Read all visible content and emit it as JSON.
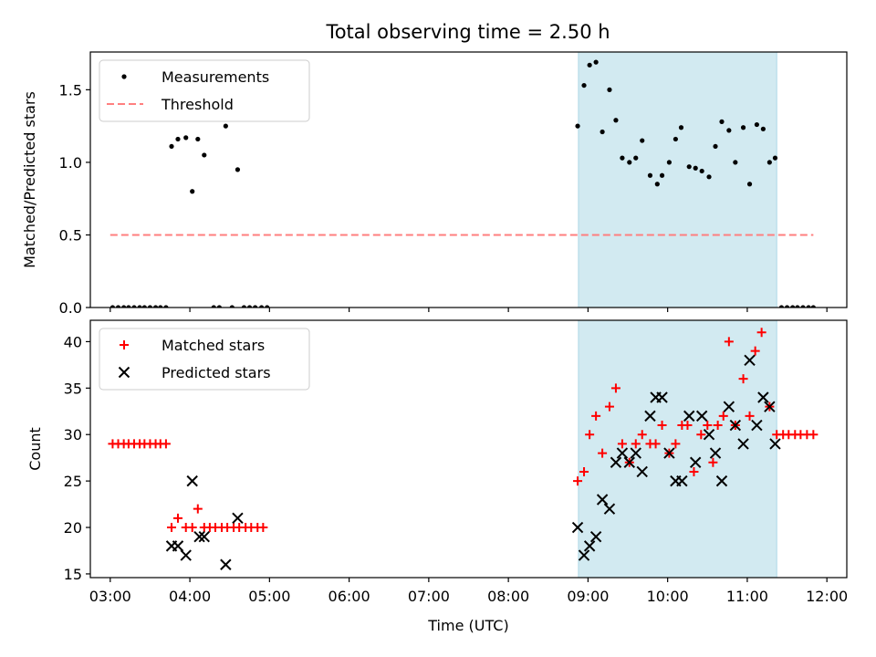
{
  "title": "Total observing time = 2.50 h",
  "colors": {
    "measurement": "#000000",
    "threshold": "#ff7f7f",
    "matched": "#ff0000",
    "predicted": "#000000",
    "shade": "#add8e6"
  },
  "chart_data": [
    {
      "type": "scatter",
      "ylabel": "Matched/Predicted stars",
      "xlim": [
        2.75,
        12.25
      ],
      "ylim": [
        0,
        1.76
      ],
      "yticks": [
        "0.0",
        "0.5",
        "1.0",
        "1.5"
      ],
      "ytick_values": [
        0,
        0.5,
        1.0,
        1.5
      ],
      "legend": {
        "position": "upper left",
        "entries": [
          "Measurements",
          "Threshold"
        ]
      },
      "shaded_interval": [
        8.88,
        11.37
      ],
      "threshold": {
        "value": 0.5,
        "x": [
          3.0,
          11.83
        ],
        "style": "dashed"
      },
      "series": [
        {
          "name": "Measurements",
          "marker": "dot",
          "points": [
            [
              3.03,
              0
            ],
            [
              3.1,
              0
            ],
            [
              3.17,
              0
            ],
            [
              3.23,
              0
            ],
            [
              3.3,
              0
            ],
            [
              3.37,
              0
            ],
            [
              3.43,
              0
            ],
            [
              3.5,
              0
            ],
            [
              3.57,
              0
            ],
            [
              3.63,
              0
            ],
            [
              3.7,
              0
            ],
            [
              3.77,
              1.11
            ],
            [
              3.85,
              1.16
            ],
            [
              3.95,
              1.17
            ],
            [
              4.03,
              0.8
            ],
            [
              4.1,
              1.16
            ],
            [
              4.18,
              1.05
            ],
            [
              4.3,
              0
            ],
            [
              4.37,
              0
            ],
            [
              4.45,
              1.25
            ],
            [
              4.53,
              0
            ],
            [
              4.6,
              0.95
            ],
            [
              4.68,
              0
            ],
            [
              4.75,
              0
            ],
            [
              4.82,
              0
            ],
            [
              4.9,
              0
            ],
            [
              4.97,
              0
            ],
            [
              8.87,
              1.25
            ],
            [
              8.95,
              1.53
            ],
            [
              9.02,
              1.67
            ],
            [
              9.1,
              1.69
            ],
            [
              9.18,
              1.21
            ],
            [
              9.27,
              1.5
            ],
            [
              9.35,
              1.29
            ],
            [
              9.43,
              1.03
            ],
            [
              9.52,
              1.0
            ],
            [
              9.6,
              1.03
            ],
            [
              9.68,
              1.15
            ],
            [
              9.78,
              0.91
            ],
            [
              9.87,
              0.85
            ],
            [
              9.93,
              0.91
            ],
            [
              10.02,
              1.0
            ],
            [
              10.1,
              1.16
            ],
            [
              10.17,
              1.24
            ],
            [
              10.27,
              0.97
            ],
            [
              10.35,
              0.96
            ],
            [
              10.43,
              0.94
            ],
            [
              10.52,
              0.9
            ],
            [
              10.6,
              1.11
            ],
            [
              10.68,
              1.28
            ],
            [
              10.77,
              1.22
            ],
            [
              10.85,
              1.0
            ],
            [
              10.95,
              1.24
            ],
            [
              11.03,
              0.85
            ],
            [
              11.12,
              1.26
            ],
            [
              11.2,
              1.23
            ],
            [
              11.28,
              1.0
            ],
            [
              11.35,
              1.03
            ],
            [
              11.43,
              0
            ],
            [
              11.5,
              0
            ],
            [
              11.57,
              0
            ],
            [
              11.63,
              0
            ],
            [
              11.7,
              0
            ],
            [
              11.77,
              0
            ],
            [
              11.83,
              0
            ]
          ]
        }
      ]
    },
    {
      "type": "scatter",
      "ylabel": "Count",
      "xlabel": "Time (UTC)",
      "xlim": [
        2.75,
        12.25
      ],
      "ylim": [
        14.6,
        42.3
      ],
      "yticks": [
        "15",
        "20",
        "25",
        "30",
        "35",
        "40"
      ],
      "ytick_values": [
        15,
        20,
        25,
        30,
        35,
        40
      ],
      "xticks": [
        "03:00",
        "04:00",
        "05:00",
        "06:00",
        "07:00",
        "08:00",
        "09:00",
        "10:00",
        "11:00",
        "12:00"
      ],
      "xtick_values": [
        3,
        4,
        5,
        6,
        7,
        8,
        9,
        10,
        11,
        12
      ],
      "legend": {
        "position": "upper left",
        "entries": [
          "Matched stars",
          "Predicted stars"
        ]
      },
      "shaded_interval": [
        8.88,
        11.37
      ],
      "series": [
        {
          "name": "Matched stars",
          "marker": "plus",
          "points": [
            [
              3.03,
              29
            ],
            [
              3.1,
              29
            ],
            [
              3.17,
              29
            ],
            [
              3.23,
              29
            ],
            [
              3.3,
              29
            ],
            [
              3.37,
              29
            ],
            [
              3.43,
              29
            ],
            [
              3.5,
              29
            ],
            [
              3.57,
              29
            ],
            [
              3.63,
              29
            ],
            [
              3.7,
              29
            ],
            [
              3.77,
              20
            ],
            [
              3.85,
              21
            ],
            [
              3.95,
              20
            ],
            [
              4.03,
              20
            ],
            [
              4.1,
              22
            ],
            [
              4.18,
              20
            ],
            [
              4.25,
              20
            ],
            [
              4.32,
              20
            ],
            [
              4.4,
              20
            ],
            [
              4.47,
              20
            ],
            [
              4.55,
              20
            ],
            [
              4.62,
              20
            ],
            [
              4.7,
              20
            ],
            [
              4.77,
              20
            ],
            [
              4.85,
              20
            ],
            [
              4.92,
              20
            ],
            [
              8.87,
              25
            ],
            [
              8.95,
              26
            ],
            [
              9.02,
              30
            ],
            [
              9.1,
              32
            ],
            [
              9.18,
              28
            ],
            [
              9.27,
              33
            ],
            [
              9.35,
              35
            ],
            [
              9.43,
              29
            ],
            [
              9.52,
              27
            ],
            [
              9.6,
              29
            ],
            [
              9.68,
              30
            ],
            [
              9.78,
              29
            ],
            [
              9.85,
              29
            ],
            [
              9.93,
              31
            ],
            [
              10.02,
              28
            ],
            [
              10.1,
              29
            ],
            [
              10.18,
              31
            ],
            [
              10.25,
              31
            ],
            [
              10.33,
              26
            ],
            [
              10.42,
              30
            ],
            [
              10.5,
              31
            ],
            [
              10.57,
              27
            ],
            [
              10.63,
              31
            ],
            [
              10.7,
              32
            ],
            [
              10.77,
              40
            ],
            [
              10.85,
              31
            ],
            [
              10.95,
              36
            ],
            [
              11.03,
              32
            ],
            [
              11.1,
              39
            ],
            [
              11.18,
              41
            ],
            [
              11.28,
              33
            ],
            [
              11.37,
              30
            ],
            [
              11.45,
              30
            ],
            [
              11.52,
              30
            ],
            [
              11.6,
              30
            ],
            [
              11.67,
              30
            ],
            [
              11.75,
              30
            ],
            [
              11.83,
              30
            ]
          ]
        },
        {
          "name": "Predicted stars",
          "marker": "x",
          "points": [
            [
              3.77,
              18
            ],
            [
              3.85,
              18
            ],
            [
              3.95,
              17
            ],
            [
              4.03,
              25
            ],
            [
              4.12,
              19
            ],
            [
              4.18,
              19
            ],
            [
              4.45,
              16
            ],
            [
              4.6,
              21
            ],
            [
              8.87,
              20
            ],
            [
              8.95,
              17
            ],
            [
              9.02,
              18
            ],
            [
              9.1,
              19
            ],
            [
              9.18,
              23
            ],
            [
              9.27,
              22
            ],
            [
              9.35,
              27
            ],
            [
              9.43,
              28
            ],
            [
              9.52,
              27
            ],
            [
              9.6,
              28
            ],
            [
              9.68,
              26
            ],
            [
              9.78,
              32
            ],
            [
              9.85,
              34
            ],
            [
              9.93,
              34
            ],
            [
              10.02,
              28
            ],
            [
              10.1,
              25
            ],
            [
              10.18,
              25
            ],
            [
              10.27,
              32
            ],
            [
              10.35,
              27
            ],
            [
              10.43,
              32
            ],
            [
              10.52,
              30
            ],
            [
              10.6,
              28
            ],
            [
              10.68,
              25
            ],
            [
              10.77,
              33
            ],
            [
              10.85,
              31
            ],
            [
              10.95,
              29
            ],
            [
              11.03,
              38
            ],
            [
              11.12,
              31
            ],
            [
              11.2,
              34
            ],
            [
              11.28,
              33
            ],
            [
              11.35,
              29
            ]
          ]
        }
      ]
    }
  ]
}
